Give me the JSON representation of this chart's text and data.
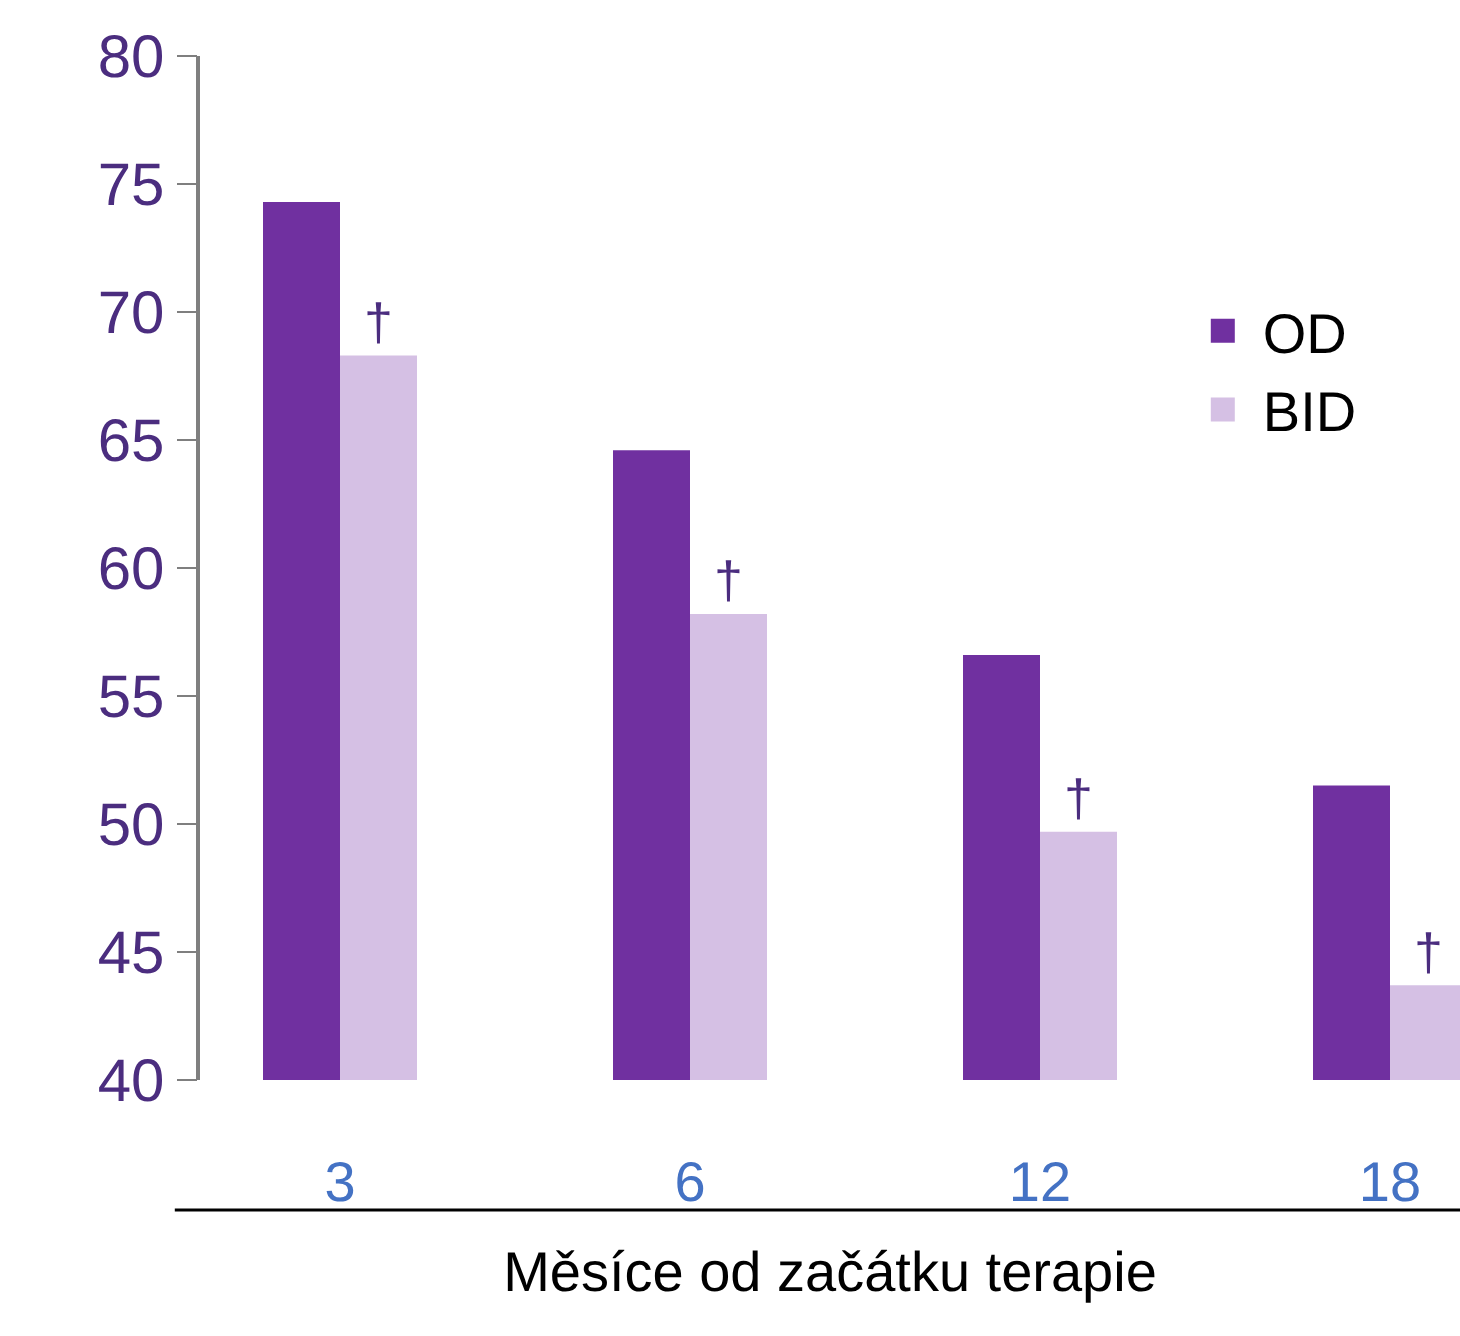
{
  "chart_data": {
    "type": "bar",
    "xlabel": "Měsíce od začátku terapie",
    "categories": [
      "3",
      "6",
      "12",
      "18"
    ],
    "series": [
      {
        "name": "OD",
        "color": "#7030a0",
        "values": [
          74.3,
          64.6,
          56.6,
          51.5
        ]
      },
      {
        "name": "BID",
        "color": "#d5c0e4",
        "values": [
          68.3,
          58.2,
          49.7,
          43.7
        ]
      }
    ],
    "ylim": [
      40,
      80
    ],
    "yticks": [
      40,
      45,
      50,
      55,
      60,
      65,
      70,
      75,
      80
    ],
    "annotations": [
      {
        "text": "†",
        "x": "3",
        "y": 68.3
      },
      {
        "text": "†",
        "x": "6",
        "y": 58.2
      },
      {
        "text": "†",
        "x": "12",
        "y": 49.7
      },
      {
        "text": "†",
        "x": "18",
        "y": 43.7
      }
    ],
    "legend": "top right"
  }
}
